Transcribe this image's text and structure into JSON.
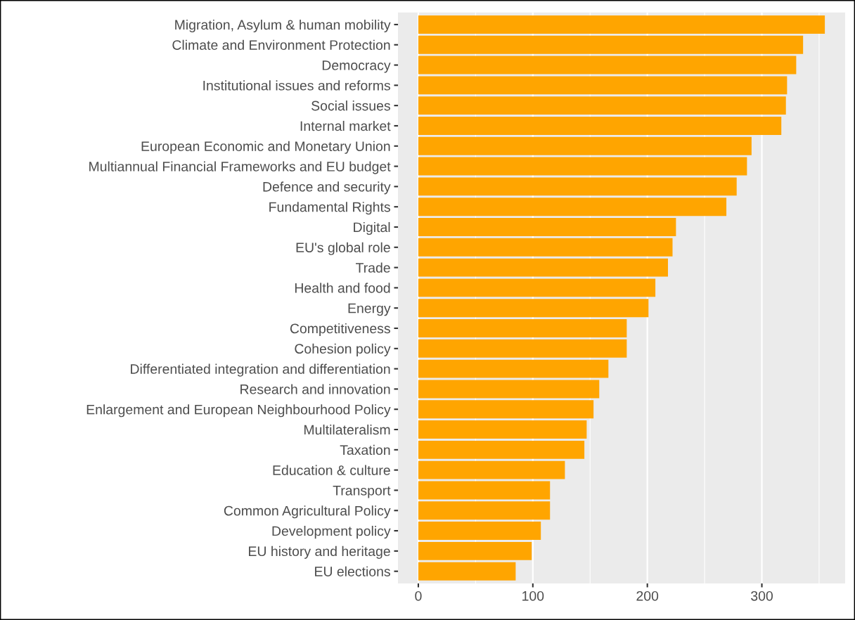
{
  "chart_data": {
    "type": "bar",
    "orientation": "horizontal",
    "categories": [
      "Migration, Asylum & human mobility",
      "Climate and Environment Protection",
      "Democracy",
      "Institutional issues and reforms",
      "Social issues",
      "Internal market",
      "European Economic and Monetary Union",
      "Multiannual Financial Frameworks and EU budget",
      "Defence and security",
      "Fundamental Rights",
      "Digital",
      "EU's global role",
      "Trade",
      "Health and food",
      "Energy",
      "Competitiveness",
      "Cohesion policy",
      "Differentiated integration and differentiation",
      "Research and innovation",
      "Enlargement and European Neighbourhood Policy",
      "Multilateralism",
      "Taxation",
      "Education & culture",
      "Transport",
      "Common Agricultural Policy",
      "Development policy",
      "EU history and heritage",
      "EU elections"
    ],
    "values": [
      355,
      336,
      330,
      322,
      321,
      317,
      291,
      287,
      278,
      269,
      225,
      222,
      218,
      207,
      201,
      182,
      182,
      166,
      158,
      153,
      147,
      145,
      128,
      115,
      115,
      107,
      99,
      85
    ],
    "color": "#ffa500",
    "xlim": [
      -17.75,
      372.75
    ],
    "xticks": [
      0,
      100,
      200,
      300
    ],
    "grid": "x"
  }
}
